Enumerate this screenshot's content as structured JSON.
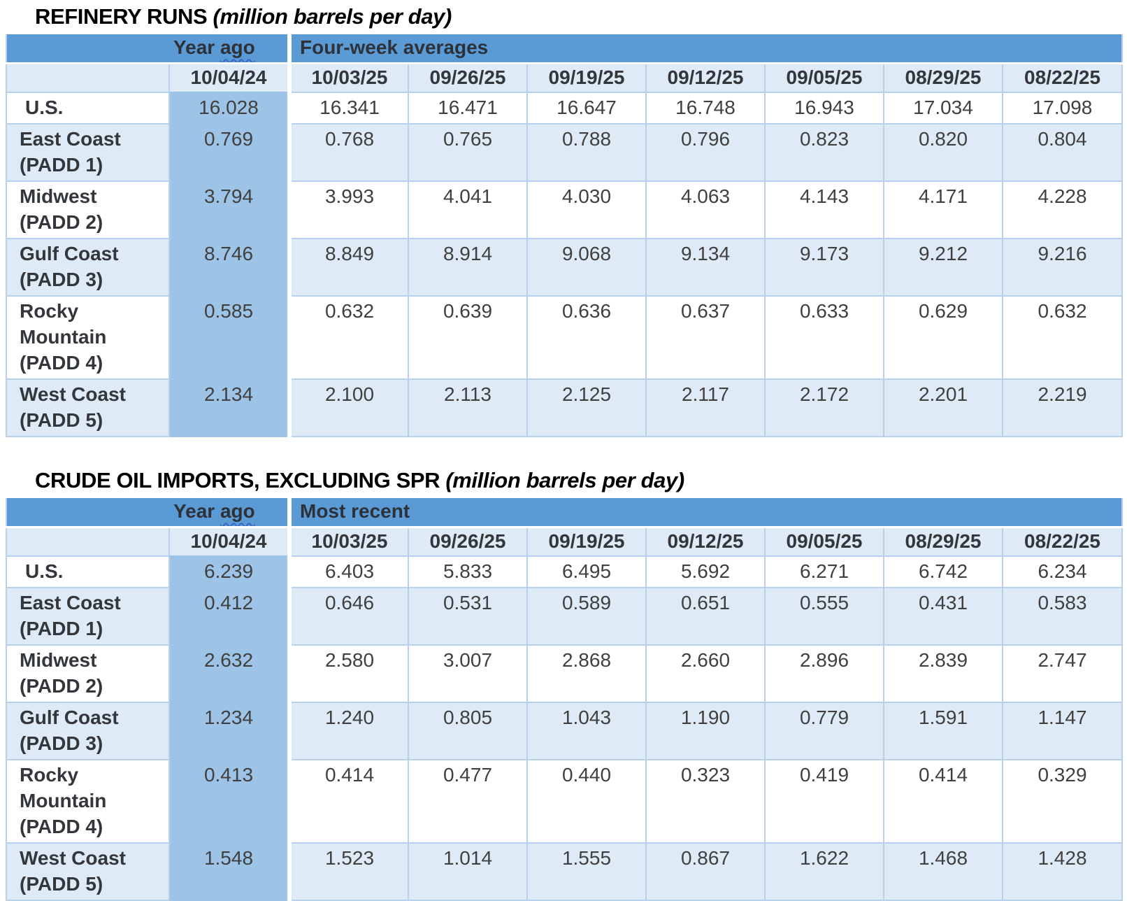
{
  "colors": {
    "group_header_blue": "#5B9BD5",
    "year_ago_column_blue": "#9DC3E6",
    "banded_row_blue": "#DEEAF6",
    "grid_line_blue": "#B7D1EC",
    "title_black": "#000000",
    "body_text_gray": "#404040",
    "squiggle_blue": "#3A66C8"
  },
  "tables": [
    {
      "title": "REFINERY RUNS",
      "unit": "(million barrels per day)",
      "year_ago_prefix": "Year",
      "year_ago_squiggle": "ago",
      "group_label": "Four-week averages",
      "year_ago_date": "10/04/24",
      "dates": [
        "10/03/25",
        "09/26/25",
        "09/19/25",
        "09/12/25",
        "09/05/25",
        "08/29/25",
        "08/22/25"
      ],
      "rows": [
        {
          "label_lines": [
            "U.S."
          ],
          "year_ago": "16.028",
          "values": [
            "16.341",
            "16.471",
            "16.647",
            "16.748",
            "16.943",
            "17.034",
            "17.098"
          ]
        },
        {
          "label_lines": [
            "East Coast",
            "(PADD 1)"
          ],
          "year_ago": "0.769",
          "values": [
            "0.768",
            "0.765",
            "0.788",
            "0.796",
            "0.823",
            "0.820",
            "0.804"
          ]
        },
        {
          "label_lines": [
            "Midwest",
            "(PADD 2)"
          ],
          "year_ago": "3.794",
          "values": [
            "3.993",
            "4.041",
            "4.030",
            "4.063",
            "4.143",
            "4.171",
            "4.228"
          ]
        },
        {
          "label_lines": [
            "Gulf Coast",
            "(PADD 3)"
          ],
          "year_ago": "8.746",
          "values": [
            "8.849",
            "8.914",
            "9.068",
            "9.134",
            "9.173",
            "9.212",
            "9.216"
          ]
        },
        {
          "label_lines": [
            "Rocky",
            "Mountain",
            "(PADD 4)"
          ],
          "year_ago": "0.585",
          "values": [
            "0.632",
            "0.639",
            "0.636",
            "0.637",
            "0.633",
            "0.629",
            "0.632"
          ]
        },
        {
          "label_lines": [
            "West Coast",
            "(PADD 5)"
          ],
          "year_ago": "2.134",
          "values": [
            "2.100",
            "2.113",
            "2.125",
            "2.117",
            "2.172",
            "2.201",
            "2.219"
          ]
        }
      ]
    },
    {
      "title": "CRUDE OIL IMPORTS, EXCLUDING SPR",
      "unit": "(million barrels per day)",
      "year_ago_prefix": "Year",
      "year_ago_squiggle": "ago",
      "group_label": "Most recent",
      "year_ago_date": "10/04/24",
      "dates": [
        "10/03/25",
        "09/26/25",
        "09/19/25",
        "09/12/25",
        "09/05/25",
        "08/29/25",
        "08/22/25"
      ],
      "rows": [
        {
          "label_lines": [
            "U.S."
          ],
          "year_ago": "6.239",
          "values": [
            "6.403",
            "5.833",
            "6.495",
            "5.692",
            "6.271",
            "6.742",
            "6.234"
          ]
        },
        {
          "label_lines": [
            "East Coast",
            "(PADD 1)"
          ],
          "year_ago": "0.412",
          "values": [
            "0.646",
            "0.531",
            "0.589",
            "0.651",
            "0.555",
            "0.431",
            "0.583"
          ]
        },
        {
          "label_lines": [
            "Midwest",
            "(PADD 2)"
          ],
          "year_ago": "2.632",
          "values": [
            "2.580",
            "3.007",
            "2.868",
            "2.660",
            "2.896",
            "2.839",
            "2.747"
          ]
        },
        {
          "label_lines": [
            "Gulf Coast",
            "(PADD 3)"
          ],
          "year_ago": "1.234",
          "values": [
            "1.240",
            "0.805",
            "1.043",
            "1.190",
            "0.779",
            "1.591",
            "1.147"
          ]
        },
        {
          "label_lines": [
            "Rocky",
            "Mountain",
            "(PADD 4)"
          ],
          "year_ago": "0.413",
          "values": [
            "0.414",
            "0.477",
            "0.440",
            "0.323",
            "0.419",
            "0.414",
            "0.329"
          ]
        },
        {
          "label_lines": [
            "West Coast",
            "(PADD 5)"
          ],
          "year_ago": "1.548",
          "values": [
            "1.523",
            "1.014",
            "1.555",
            "0.867",
            "1.622",
            "1.468",
            "1.428"
          ]
        }
      ]
    }
  ]
}
